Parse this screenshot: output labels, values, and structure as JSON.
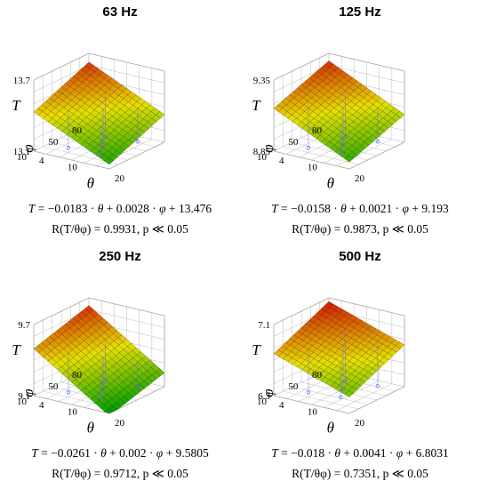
{
  "chart_data": [
    {
      "type": "surface",
      "title": "63 Hz",
      "zlabel": "T",
      "theta_label": "θ",
      "phi_label": "φ",
      "theta_ticks": [
        "4",
        "10",
        "20"
      ],
      "phi_ticks": [
        "10",
        "50",
        "80"
      ],
      "z_ticks": [
        "13.1",
        "13.7"
      ],
      "zlim": [
        13.1,
        13.7
      ],
      "coefficients": {
        "theta": -0.0183,
        "phi": 0.0028,
        "intercept": 13.476
      },
      "equation_terms": {
        "a": "0.0183",
        "b": "0.0028",
        "c": "13.476"
      },
      "fit_value": "0.9931",
      "significance": "0.05"
    },
    {
      "type": "surface",
      "title": "125 Hz",
      "zlabel": "T",
      "theta_label": "θ",
      "phi_label": "φ",
      "theta_ticks": [
        "4",
        "10",
        "20"
      ],
      "phi_ticks": [
        "10",
        "50",
        "80"
      ],
      "z_ticks": [
        "8.85",
        "9.35"
      ],
      "zlim": [
        8.85,
        9.35
      ],
      "coefficients": {
        "theta": -0.0158,
        "phi": 0.0021,
        "intercept": 9.193
      },
      "equation_terms": {
        "a": "0.0158",
        "b": "0.0021",
        "c": "9.193"
      },
      "fit_value": "0.9873",
      "significance": "0.05"
    },
    {
      "type": "surface",
      "title": "250 Hz",
      "zlabel": "T",
      "theta_label": "θ",
      "phi_label": "φ",
      "theta_ticks": [
        "4",
        "10",
        "20"
      ],
      "phi_ticks": [
        "10",
        "50",
        "80"
      ],
      "z_ticks": [
        "9.1",
        "9.7"
      ],
      "zlim": [
        9.1,
        9.7
      ],
      "coefficients": {
        "theta": -0.0261,
        "phi": 0.002,
        "intercept": 9.5805
      },
      "equation_terms": {
        "a": "0.0261",
        "b": "0.002",
        "c": "9.5805"
      },
      "fit_value": "0.9712",
      "significance": "0.05"
    },
    {
      "type": "surface",
      "title": "500 Hz",
      "zlabel": "T",
      "theta_label": "θ",
      "phi_label": "φ",
      "theta_ticks": [
        "4",
        "10",
        "20"
      ],
      "phi_ticks": [
        "10",
        "50",
        "80"
      ],
      "z_ticks": [
        "6.3",
        "7.1"
      ],
      "zlim": [
        6.3,
        7.1
      ],
      "coefficients": {
        "theta": -0.018,
        "phi": 0.0041,
        "intercept": 6.8031
      },
      "equation_terms": {
        "a": "0.018",
        "b": "0.0041",
        "c": "6.8031"
      },
      "fit_value": "0.7351",
      "significance": "0.05"
    }
  ],
  "colors": {
    "surface_low": "#00a000",
    "surface_mid": "#e8e000",
    "surface_high": "#d00000",
    "mesh": "#000000",
    "box": "#c8c8c8",
    "points": "#6060ff"
  }
}
